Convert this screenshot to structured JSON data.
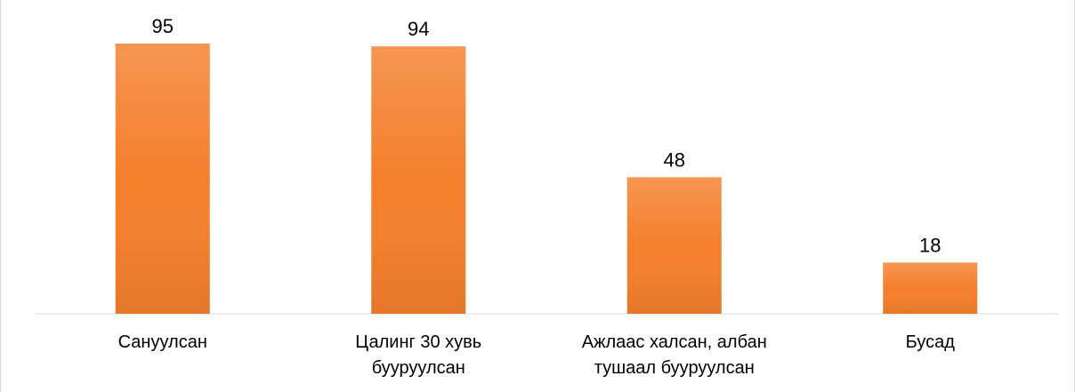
{
  "chart_data": {
    "type": "bar",
    "categories": [
      "Сануулсан",
      "Цалинг 30 хувь бууруулсан",
      "Ажлаас халсан, албан тушаал бууруулсан",
      "Бусад"
    ],
    "values": [
      95,
      94,
      48,
      18
    ],
    "color": "#f47f2c"
  }
}
